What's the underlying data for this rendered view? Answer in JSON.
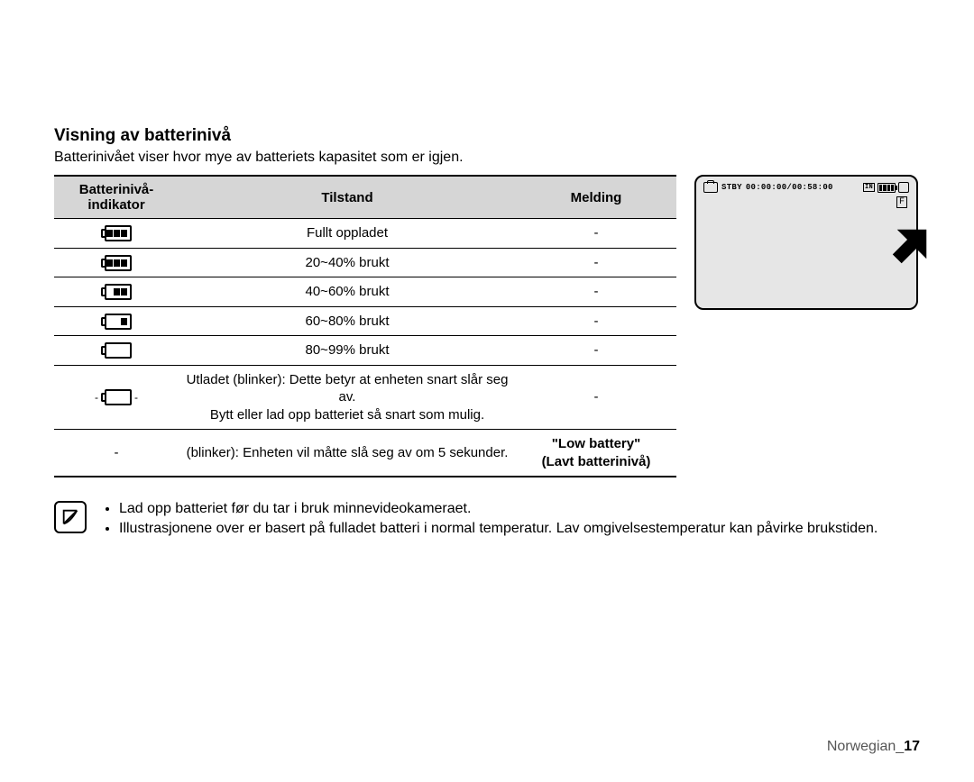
{
  "title": "Visning av batterinivå",
  "subtitle": "Batterinivået viser hvor mye av batteriets kapasitet som er igjen.",
  "table": {
    "headers": {
      "indicator": "Batterinivå-\nindikator",
      "state": "Tilstand",
      "message": "Melding"
    },
    "rows": [
      {
        "bars": 3,
        "blink": false,
        "state": "Fullt oppladet",
        "message": "-"
      },
      {
        "bars": 3,
        "blink": false,
        "state": "20~40% brukt",
        "message": "-"
      },
      {
        "bars": 2,
        "blink": false,
        "state": "40~60% brukt",
        "message": "-"
      },
      {
        "bars": 1,
        "blink": false,
        "state": "60~80% brukt",
        "message": "-"
      },
      {
        "bars": 0,
        "blink": false,
        "state": "80~99% brukt",
        "message": "-"
      },
      {
        "bars": 0,
        "blink": true,
        "state": "Utladet (blinker): Dette betyr at enheten snart slår seg av.\nBytt eller lad opp batteriet så snart som mulig.",
        "message": "-"
      },
      {
        "indicator_text": "-",
        "state": "(blinker): Enheten vil måtte slå seg av om 5 sekunder.",
        "message": "\"Low battery\"\n(Lavt batterinivå)",
        "message_bold": true
      }
    ]
  },
  "lcd": {
    "status": "STBY",
    "time": "00:00:00/00:58:00",
    "in_label": "IN",
    "mode_label": "F"
  },
  "notes": [
    "Lad opp batteriet før du tar i bruk minnevideokameraet.",
    "Illustrasjonene over er basert på fulladet batteri i normal temperatur. Lav omgivelsestemperatur kan påvirke brukstiden."
  ],
  "footer": {
    "lang": "Norwegian_",
    "page": "17"
  },
  "colors": {
    "header_bg": "#d6d6d6",
    "lcd_bg": "#e6e6e6",
    "text": "#000000",
    "footer_text": "#555555"
  }
}
